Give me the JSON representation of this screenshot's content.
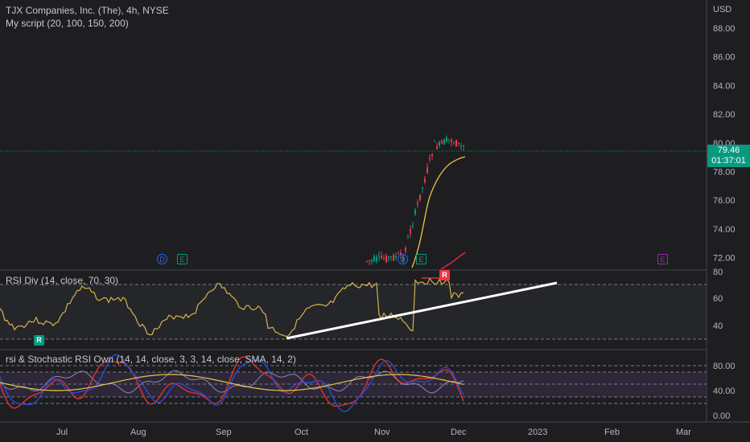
{
  "main": {
    "title": "TJX Companies, Inc. (The), 4h, NYSE",
    "indicator": "My script (20, 100, 150, 200)",
    "currency": "USD",
    "price_tag": {
      "price": "79.46",
      "countdown": "01:37:01"
    },
    "y_ticks": [
      "88.00",
      "86.00",
      "84.00",
      "82.00",
      "80.00",
      "78.00",
      "76.00",
      "74.00",
      "72.00"
    ]
  },
  "rsi_pane": {
    "title": "RSI Div (14, close, 70, 30)",
    "y_ticks": [
      "80",
      "60",
      "40"
    ]
  },
  "stoch_pane": {
    "title": "rsi & Stochastic RSI Own (14, 14, close, 3, 3, 14, close, SMA, 14, 2)",
    "y_ticks": [
      "80.00",
      "40.00",
      "0.00"
    ]
  },
  "x_axis": {
    "labels": [
      "Jul",
      "Aug",
      "Sep",
      "Oct",
      "Nov",
      "Dec",
      "2023",
      "Feb",
      "Mar"
    ]
  },
  "events": [
    {
      "glyph": "D",
      "kind": "dividend"
    },
    {
      "glyph": "E",
      "kind": "earnings"
    },
    {
      "glyph": "D",
      "kind": "dividend"
    },
    {
      "glyph": "E",
      "kind": "earnings"
    },
    {
      "glyph": "E",
      "kind": "earnings-upcoming"
    }
  ],
  "rsi_signals": [
    "R",
    "R"
  ],
  "colors": {
    "background": "#1e1e21",
    "up": "#089981",
    "down": "#f23645",
    "ma": "#e8c547",
    "rsi": "#d4b24c",
    "stoch_k": "#e03030",
    "stoch_d": "#2a4bd8",
    "trendline": "#ffffff",
    "earnings_upcoming": "#9c27b0"
  }
}
